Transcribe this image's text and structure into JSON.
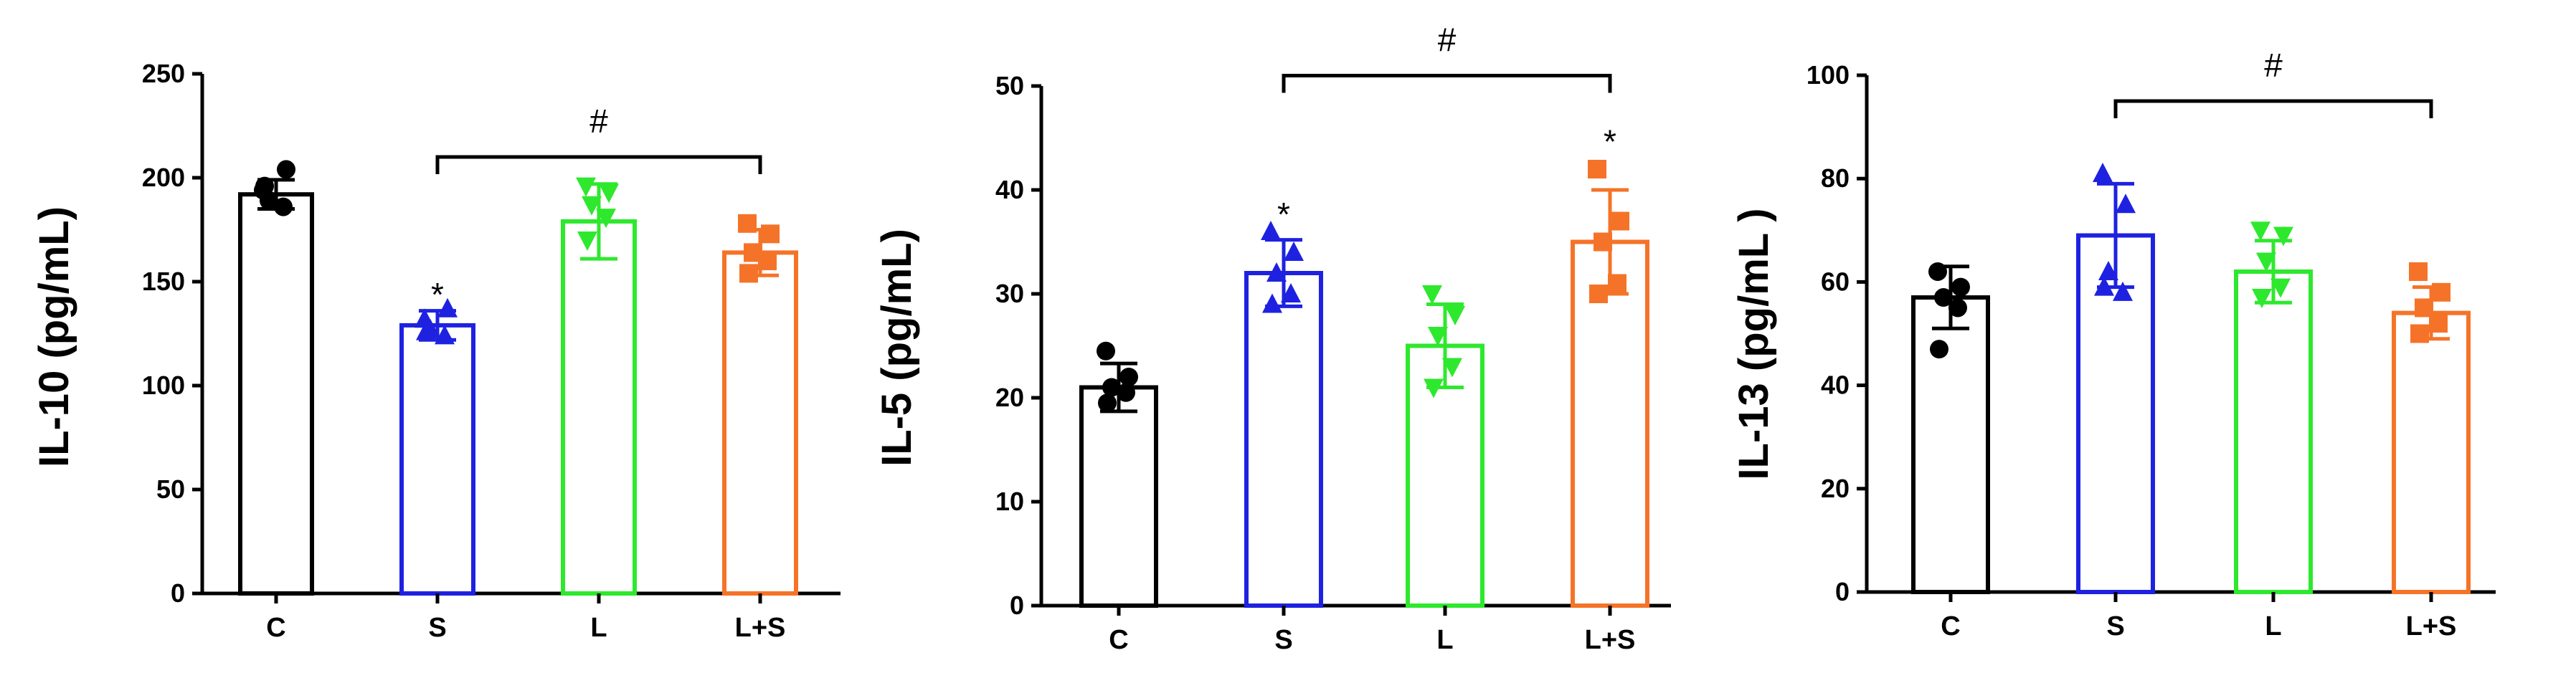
{
  "chart_data": [
    {
      "type": "bar",
      "ylabel": "IL-10 (pg/mL)",
      "ylim": [
        0,
        250
      ],
      "yticks": [
        0,
        50,
        100,
        150,
        200,
        250
      ],
      "categories": [
        "C",
        "S",
        "L",
        "L+S"
      ],
      "values": [
        192,
        129,
        179,
        164
      ],
      "errors": [
        7,
        7,
        18,
        11
      ],
      "points": [
        [
          194,
          204,
          189,
          186,
          196
        ],
        [
          132,
          137,
          127,
          124,
          126
        ],
        [
          196,
          193,
          187,
          181,
          170
        ],
        [
          178,
          173,
          164,
          160,
          154
        ]
      ],
      "colors": [
        "#000000",
        "#1e22e0",
        "#2ee82e",
        "#f57328"
      ],
      "markers": [
        "circle",
        "triangle-up",
        "triangle-down",
        "square"
      ],
      "bracket": {
        "from": 1,
        "to": 3,
        "y": 210,
        "label": "#"
      },
      "stars": [
        {
          "index": 1,
          "y": 148,
          "label": "*"
        }
      ]
    },
    {
      "type": "bar",
      "ylabel": "IL-5 (pg/mL)",
      "ylim": [
        0,
        50
      ],
      "yticks": [
        0,
        10,
        20,
        30,
        40,
        50
      ],
      "categories": [
        "C",
        "S",
        "L",
        "L+S"
      ],
      "values": [
        21,
        32,
        25,
        35
      ],
      "errors": [
        2.3,
        3.2,
        4,
        5
      ],
      "points": [
        [
          24.5,
          22,
          21,
          20.5,
          19.5
        ],
        [
          36,
          34,
          32,
          30,
          29
        ],
        [
          30,
          28,
          26,
          23,
          21
        ],
        [
          42,
          37,
          35,
          31,
          30
        ]
      ],
      "colors": [
        "#000000",
        "#1e22e0",
        "#2ee82e",
        "#f57328"
      ],
      "markers": [
        "circle",
        "triangle-up",
        "triangle-down",
        "square"
      ],
      "bracket": {
        "from": 1,
        "to": 3,
        "y": 51,
        "label": "#"
      },
      "stars": [
        {
          "index": 1,
          "y": 38.5,
          "label": "*"
        },
        {
          "index": 3,
          "y": 45.5,
          "label": "*"
        }
      ]
    },
    {
      "type": "bar",
      "ylabel": "IL-13 (pg/mL )",
      "ylim": [
        0,
        100
      ],
      "yticks": [
        0,
        20,
        40,
        60,
        80,
        100
      ],
      "categories": [
        "C",
        "S",
        "L",
        "L+S"
      ],
      "values": [
        57,
        69,
        62,
        54
      ],
      "errors": [
        6,
        10,
        6,
        5
      ],
      "points": [
        [
          62,
          59,
          57,
          55,
          47
        ],
        [
          81,
          75,
          62,
          58,
          59
        ],
        [
          70,
          69,
          64,
          59,
          57
        ],
        [
          62,
          58,
          55,
          52,
          50
        ]
      ],
      "colors": [
        "#000000",
        "#1e22e0",
        "#2ee82e",
        "#f57328"
      ],
      "markers": [
        "circle",
        "triangle-up",
        "triangle-down",
        "square"
      ],
      "bracket": {
        "from": 1,
        "to": 3,
        "y": 95,
        "label": "#"
      },
      "stars": []
    }
  ]
}
